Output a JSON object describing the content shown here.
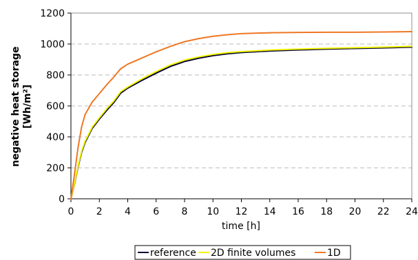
{
  "chart_data": {
    "type": "line",
    "xlabel": "time [h]",
    "ylabel_lines": [
      "negative heat storage",
      "[Wh/m²]"
    ],
    "xlim": [
      0,
      24
    ],
    "ylim": [
      0,
      1200
    ],
    "x_ticks": [
      0,
      2,
      4,
      6,
      8,
      10,
      12,
      14,
      16,
      18,
      20,
      22,
      24
    ],
    "y_ticks": [
      0,
      200,
      400,
      600,
      800,
      1000,
      1200
    ],
    "grid": "horizontal dashed",
    "legend_position": "bottom",
    "series": [
      {
        "name": "reference",
        "color": "#000033",
        "x": [
          0,
          0.25,
          0.5,
          0.75,
          1,
          1.5,
          2,
          2.5,
          3,
          3.5,
          4,
          5,
          6,
          7,
          8,
          9,
          10,
          11,
          12,
          14,
          16,
          18,
          20,
          22,
          24
        ],
        "y": [
          0,
          95,
          205,
          300,
          365,
          455,
          515,
          570,
          620,
          682,
          715,
          765,
          812,
          855,
          887,
          908,
          925,
          937,
          945,
          955,
          962,
          967,
          971,
          975,
          980
        ]
      },
      {
        "name": "2D finite volumes",
        "color": "#f2f200",
        "x": [
          0,
          0.25,
          0.5,
          0.75,
          1,
          1.5,
          2,
          2.5,
          3,
          3.5,
          4,
          5,
          6,
          7,
          8,
          9,
          10,
          11,
          12,
          14,
          16,
          18,
          20,
          22,
          24
        ],
        "y": [
          0,
          100,
          212,
          308,
          373,
          463,
          523,
          580,
          630,
          692,
          722,
          775,
          822,
          865,
          896,
          917,
          933,
          944,
          951,
          961,
          967,
          972,
          976,
          980,
          985
        ]
      },
      {
        "name": "1D",
        "color": "#ee7722",
        "x": [
          0,
          0.25,
          0.5,
          0.75,
          1,
          1.5,
          2,
          2.5,
          3,
          3.5,
          4,
          5,
          6,
          7,
          8,
          9,
          10,
          11,
          12,
          14,
          16,
          18,
          20,
          22,
          24
        ],
        "y": [
          0,
          160,
          330,
          465,
          545,
          625,
          680,
          735,
          785,
          840,
          870,
          910,
          950,
          985,
          1015,
          1035,
          1050,
          1060,
          1067,
          1073,
          1075,
          1076,
          1076,
          1078,
          1080
        ]
      }
    ]
  }
}
